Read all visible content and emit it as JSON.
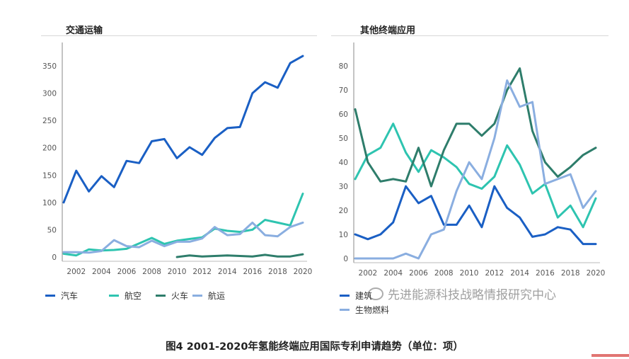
{
  "caption": "图4 2001-2020年氢能终端应用国际专利申请趋势（单位：项）",
  "watermark": "先进能源科技战略情报研究中心",
  "chart_data": [
    {
      "type": "line",
      "title": "交通运输",
      "x": [
        2001,
        2002,
        2003,
        2004,
        2005,
        2006,
        2007,
        2008,
        2009,
        2010,
        2011,
        2012,
        2013,
        2014,
        2015,
        2016,
        2017,
        2018,
        2019,
        2020
      ],
      "x_ticks": [
        "2002",
        "2004",
        "2006",
        "2008",
        "2010",
        "2012",
        "2014",
        "2016",
        "2018",
        "2020"
      ],
      "y_ticks": [
        "0",
        "50",
        "100",
        "150",
        "200",
        "250",
        "300",
        "350"
      ],
      "ylim": [
        0,
        385
      ],
      "grid": false,
      "legend_position": "bottom",
      "series": [
        {
          "name": "汽车",
          "color": "#1a5fc4",
          "values": [
            100,
            158,
            120,
            148,
            128,
            176,
            172,
            212,
            216,
            181,
            201,
            187,
            218,
            236,
            238,
            300,
            320,
            310,
            355,
            368
          ]
        },
        {
          "name": "航空",
          "color": "#2ec4b0",
          "values": [
            6,
            3,
            14,
            12,
            13,
            15,
            25,
            35,
            24,
            30,
            33,
            36,
            52,
            48,
            46,
            50,
            68,
            63,
            58,
            116
          ]
        },
        {
          "name": "火车",
          "color": "#2e7d6b",
          "values": [
            null,
            null,
            null,
            null,
            null,
            null,
            null,
            null,
            null,
            0,
            3,
            1,
            2,
            3,
            2,
            1,
            4,
            1,
            1,
            5
          ]
        },
        {
          "name": "航运",
          "color": "#8aaee0",
          "values": [
            9,
            9,
            8,
            11,
            31,
            20,
            18,
            30,
            20,
            28,
            28,
            34,
            55,
            40,
            42,
            63,
            40,
            38,
            55,
            63
          ]
        }
      ]
    },
    {
      "type": "line",
      "title": "其他终端应用",
      "x": [
        2001,
        2002,
        2003,
        2004,
        2005,
        2006,
        2007,
        2008,
        2009,
        2010,
        2011,
        2012,
        2013,
        2014,
        2015,
        2016,
        2017,
        2018,
        2019,
        2020
      ],
      "x_ticks": [
        "2002",
        "2004",
        "2006",
        "2008",
        "2010",
        "2012",
        "2014",
        "2016",
        "2018",
        "2020"
      ],
      "y_ticks": [
        "0",
        "10",
        "20",
        "30",
        "40",
        "50",
        "60",
        "70",
        "80"
      ],
      "ylim": [
        0,
        88
      ],
      "grid": false,
      "legend_position": "bottom",
      "series": [
        {
          "name": "建筑",
          "color": "#1a5fc4",
          "values": [
            10,
            8,
            10,
            15,
            30,
            23,
            26,
            14,
            14,
            22,
            13,
            30,
            21,
            17,
            9,
            10,
            13,
            12,
            6,
            6
          ]
        },
        {
          "name": "",
          "color": "#2ec4b0",
          "values": [
            33,
            43,
            46,
            56,
            44,
            36,
            45,
            42,
            38,
            31,
            29,
            34,
            47,
            39,
            27,
            31,
            17,
            22,
            13,
            25
          ]
        },
        {
          "name": "",
          "color": "#2e7d6b",
          "values": [
            62,
            40,
            32,
            33,
            32,
            46,
            30,
            45,
            56,
            56,
            51,
            56,
            70,
            79,
            53,
            40,
            34,
            38,
            43,
            46
          ]
        },
        {
          "name": "生物燃料",
          "color": "#8aaee0",
          "values": [
            0,
            0,
            0,
            0,
            2,
            0,
            10,
            12,
            28,
            40,
            33,
            50,
            74,
            63,
            65,
            31,
            33,
            35,
            21,
            28
          ]
        }
      ]
    }
  ]
}
